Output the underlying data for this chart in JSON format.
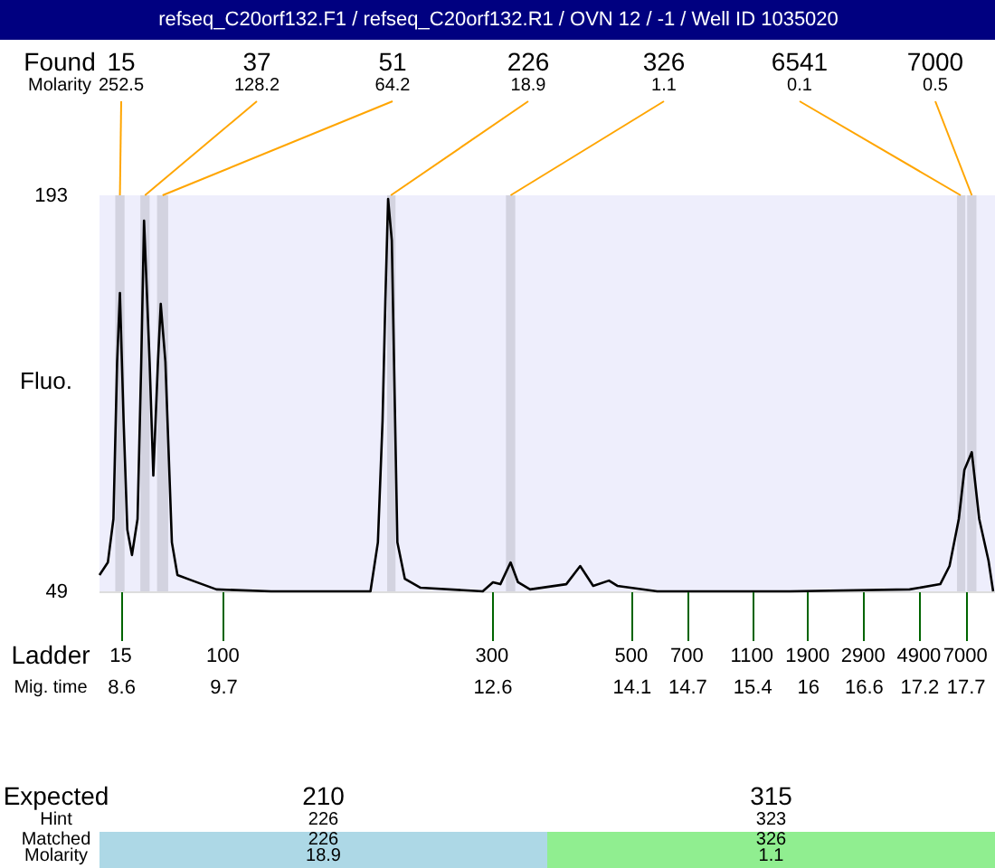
{
  "chart_data": {
    "type": "line",
    "title": "refseq_C20orf132.F1 / refseq_C20orf132.R1 / OVN 12 / -1 / Well ID 1035020",
    "ylabel": "Fluo.",
    "x": [
      8.37,
      8.46,
      8.52,
      8.56,
      8.59,
      8.63,
      8.67,
      8.72,
      8.78,
      8.82,
      8.85,
      8.91,
      8.95,
      9.0,
      9.03,
      9.08,
      9.15,
      9.21,
      9.37,
      9.63,
      10.22,
      10.86,
      11.29,
      11.37,
      11.42,
      11.45,
      11.48,
      11.52,
      11.55,
      11.58,
      11.66,
      11.83,
      12.5,
      12.61,
      12.69,
      12.8,
      12.88,
      13.01,
      13.4,
      13.55,
      13.69,
      13.86,
      13.95,
      14.38,
      15.81,
      17.1,
      17.43,
      17.53,
      17.63,
      17.69,
      17.77,
      17.85,
      17.95,
      18.0
    ],
    "series": [
      {
        "color": "#000000",
        "values": [
          54.9,
          59.5,
          75.3,
          132.5,
          157.5,
          110.8,
          71.4,
          62.2,
          75.3,
          132.5,
          183.8,
          132.5,
          91.1,
          132.5,
          153.5,
          132.5,
          66.8,
          54.9,
          52.9,
          49.7,
          49,
          49,
          49,
          66.8,
          110.8,
          154.2,
          191.7,
          176.6,
          121.3,
          66.8,
          53.6,
          50.3,
          49,
          52.3,
          51.6,
          59.5,
          52.3,
          49.7,
          51.6,
          58.2,
          51.0,
          52.9,
          51.0,
          49,
          49,
          49.7,
          51.6,
          58.2,
          75.3,
          93.1,
          99.6,
          75.3,
          60.2,
          49
        ]
      }
    ],
    "xlim": [
      8.37,
      18.02
    ],
    "ylim": [
      49,
      193
    ],
    "yticks": [
      49,
      193
    ],
    "xticks": [
      {
        "value": 8.6,
        "label": "8.6"
      },
      {
        "value": 9.7,
        "label": "9.7"
      },
      {
        "value": 12.6,
        "label": "12.6"
      },
      {
        "value": 14.1,
        "label": "14.1"
      },
      {
        "value": 14.7,
        "label": "14.7"
      },
      {
        "value": 15.4,
        "label": "15.4"
      },
      16,
      {
        "value": 16.6,
        "label": "16.6"
      },
      {
        "value": 17.2,
        "label": "17.2"
      },
      {
        "value": 17.7,
        "label": "17.7"
      }
    ],
    "bands": [
      {
        "axis": "x",
        "from": 8.54,
        "to": 8.64,
        "color": "#d3d3e0"
      },
      {
        "axis": "x",
        "from": 8.81,
        "to": 8.91,
        "color": "#d3d3e0"
      },
      {
        "axis": "x",
        "from": 8.99,
        "to": 9.11,
        "color": "#d3d3e0"
      },
      {
        "axis": "x",
        "from": 11.47,
        "to": 11.56,
        "color": "#d3d3e0"
      },
      {
        "axis": "x",
        "from": 12.75,
        "to": 12.85,
        "color": "#d3d3e0"
      },
      {
        "axis": "x",
        "from": 17.61,
        "to": 17.7,
        "color": "#d3d3e0"
      },
      {
        "axis": "x",
        "from": 17.72,
        "to": 17.82,
        "color": "#d3d3e0"
      }
    ],
    "annotations": [
      "Found",
      "Molarity",
      {
        "text": "15",
        "x": 8.59,
        "y": 193
      },
      "252.5",
      {
        "text": "37",
        "x": 8.86,
        "y": 193
      },
      "128.2",
      {
        "text": "51",
        "x": 9.05,
        "y": 193
      },
      "64.2",
      {
        "text": "226",
        "x": 11.51,
        "y": 193
      },
      "18.9",
      {
        "text": "326",
        "x": 12.8,
        "y": 193
      },
      "1.1",
      {
        "text": "6541",
        "x": 17.65,
        "y": 193
      },
      "0.1",
      {
        "text": "7000",
        "x": 17.77,
        "y": 193
      },
      "0.5",
      "Ladder",
      "Mig. time",
      {
        "text": "15",
        "x": 8.6,
        "y": 49
      },
      {
        "text": "100",
        "x": 9.7,
        "y": 49
      },
      {
        "text": "300",
        "x": 12.6,
        "y": 49
      },
      {
        "text": "500",
        "x": 14.1,
        "y": 49
      },
      {
        "text": "700",
        "x": 14.7,
        "y": 49
      },
      {
        "text": "1100",
        "x": 15.4,
        "y": 49
      },
      {
        "text": "1900",
        "x": 16,
        "y": 49
      },
      {
        "text": "2900",
        "x": 16.6,
        "y": 49
      },
      {
        "text": "4900",
        "x": 17.2,
        "y": 49
      },
      {
        "text": "7000",
        "x": 17.7,
        "y": 49
      },
      "Expected",
      "Hint",
      "Matched",
      "Molarity",
      "210",
      "226",
      "226",
      "18.9",
      "315",
      "323",
      "326",
      "1.1"
    ],
    "grid": false
  }
}
